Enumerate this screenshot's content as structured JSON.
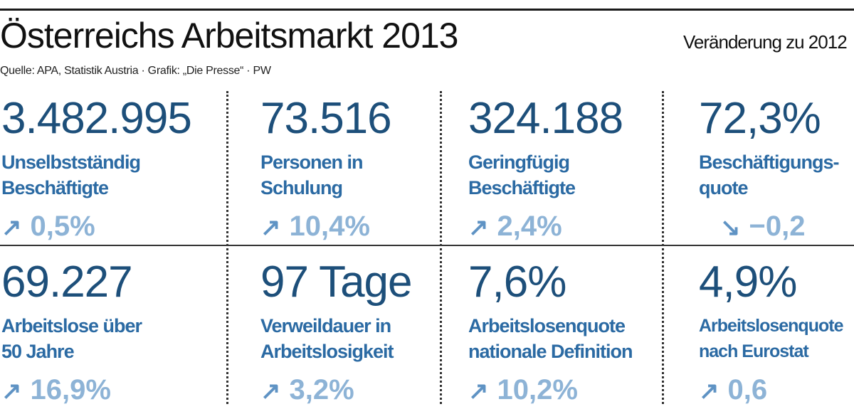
{
  "title": "Österreichs Arbeitsmarkt 2013",
  "source": "Quelle: APA, Statistik Austria · Grafik: „Die Presse“ · PW",
  "change_note": "Veränderung zu 2012",
  "colors": {
    "value": "#1d4f7a",
    "label": "#2b6aa3",
    "change": "#8db3d6"
  },
  "stats": [
    {
      "value": "3.482.995",
      "label": "Unselbstständig\nBeschäftigte",
      "arrow": "↗",
      "direction": "up",
      "change": "0,5%"
    },
    {
      "value": "73.516",
      "label": "Personen in\nSchulung",
      "arrow": "↗",
      "direction": "up",
      "change": "10,4%"
    },
    {
      "value": "324.188",
      "label": "Geringfügig\nBeschäftigte",
      "arrow": "↗",
      "direction": "up",
      "change": "2,4%"
    },
    {
      "value": "72,3%",
      "label": "Beschäftigungs-\nquote",
      "arrow": "↘",
      "direction": "down",
      "change": "−0,2"
    },
    {
      "value": "69.227",
      "label": "Arbeitslose über\n50 Jahre",
      "arrow": "↗",
      "direction": "up",
      "change": "16,9%"
    },
    {
      "value": "97 Tage",
      "label": "Verweildauer in\nArbeitslosigkeit",
      "arrow": "↗",
      "direction": "up",
      "change": "3,2%"
    },
    {
      "value": "7,6%",
      "label": "Arbeitslosenquote\nnationale Definition",
      "arrow": "↗",
      "direction": "up",
      "change": "10,2%"
    },
    {
      "value": "4,9%",
      "label": "Arbeitslosenquote\nnach Eurostat",
      "arrow": "↗",
      "direction": "up",
      "change": "0,6"
    }
  ]
}
